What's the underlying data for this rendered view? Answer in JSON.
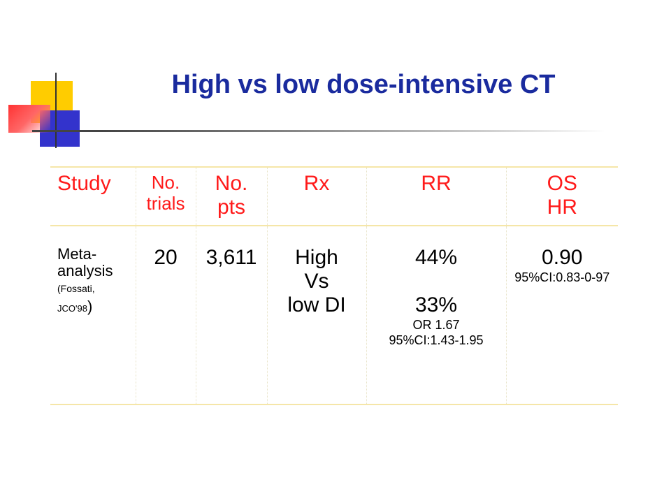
{
  "title": "High vs low dose-intensive CT",
  "table": {
    "headers": {
      "study": "Study",
      "trials": [
        "No.",
        "trials"
      ],
      "pts": [
        "No.",
        "pts"
      ],
      "rx": "Rx",
      "rr": "RR",
      "os": [
        "OS",
        "HR"
      ]
    },
    "row": {
      "study": [
        "Meta-",
        "analysis",
        "(Fossati,",
        "JCO'98",
        ")"
      ],
      "trials": "20",
      "pts": "3,611",
      "rx": [
        "High",
        "Vs",
        "low DI"
      ],
      "rr": [
        "44%",
        "33%",
        "OR 1.67",
        "95%CI:1.43-1.95"
      ],
      "os": [
        "0.90",
        "95%CI:0.83-0-97"
      ]
    }
  },
  "colors": {
    "title": "#1a2b9e",
    "header": "#ff1a1a",
    "rule": "#f5e6a8",
    "deco_yellow": "#ffcc00",
    "deco_blue": "#3333cc",
    "deco_red": "#ff3333"
  }
}
